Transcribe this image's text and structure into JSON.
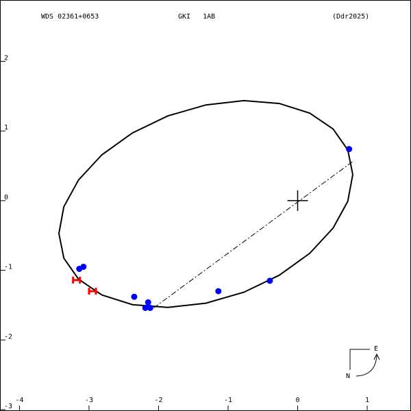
{
  "chart_data": {
    "type": "orbit",
    "title": "WDS 02361+0653",
    "subtitle": "GKI   1AB",
    "note": "(Ddr2025)",
    "xlim": [
      -4.28,
      1.63
    ],
    "ylim": [
      -3.02,
      2.88
    ],
    "xticks": [
      -4,
      -3,
      -2,
      -1,
      0,
      1
    ],
    "yticks": [
      2,
      1,
      0,
      -1,
      -2,
      -3
    ],
    "orbit": {
      "color": "#000000",
      "x": [
        0.793,
        0.721,
        0.51,
        0.174,
        -0.263,
        -0.773,
        -1.32,
        -1.867,
        -2.376,
        -2.815,
        -3.151,
        -3.362,
        -3.433,
        -3.362,
        -3.151,
        -2.815,
        -2.376,
        -1.867,
        -1.32,
        -0.773,
        -0.263,
        0.174,
        0.51,
        0.721,
        0.793
      ],
      "y": [
        0.374,
        -0.01,
        -0.394,
        -0.756,
        -1.07,
        -1.315,
        -1.472,
        -1.533,
        -1.493,
        -1.354,
        -1.127,
        -0.826,
        -0.472,
        -0.088,
        0.296,
        0.658,
        0.971,
        1.216,
        1.374,
        1.435,
        1.394,
        1.256,
        1.028,
        0.728,
        0.374
      ]
    },
    "node_line": {
      "x": [
        -2.07,
        0.79
      ],
      "y": [
        -1.54,
        0.56
      ]
    },
    "primary": {
      "x": 0,
      "y": 0
    },
    "series": [
      {
        "marker": "circle",
        "color": "#0000ff",
        "x": [
          0.74,
          -0.4,
          -1.14,
          -2.15,
          -2.35,
          -2.19,
          -2.12,
          -3.14,
          -3.08
        ],
        "y": [
          0.74,
          -1.15,
          -1.3,
          -1.46,
          -1.38,
          -1.54,
          -1.54,
          -0.98,
          -0.95
        ]
      },
      {
        "marker": "H",
        "color": "#ff0000",
        "x": [
          -3.18,
          -2.95
        ],
        "y": [
          -1.14,
          -1.3
        ]
      }
    ],
    "compass": {
      "east": "E",
      "north": "N"
    }
  }
}
